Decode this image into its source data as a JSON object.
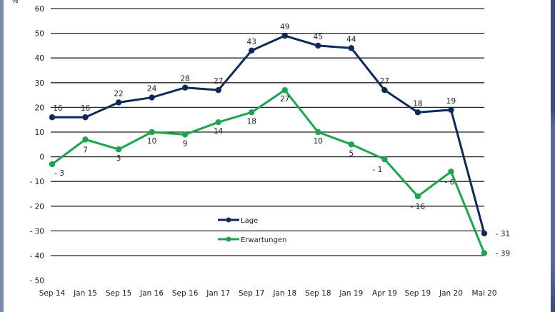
{
  "chart_data": {
    "type": "line",
    "title": "",
    "ylabel": "%",
    "xlabel": "",
    "ylim": [
      -50,
      60
    ],
    "yticks": [
      60,
      50,
      40,
      30,
      20,
      10,
      0,
      -10,
      -20,
      -30,
      -40,
      -50
    ],
    "ytick_labels": [
      "60",
      "50",
      "40",
      "30",
      "20",
      "10",
      "0",
      "- 10",
      "- 20",
      "- 30",
      "- 40",
      "- 50"
    ],
    "gridlines": [
      60,
      50,
      40,
      30,
      20,
      10,
      0,
      -10,
      -20,
      -30,
      -40
    ],
    "grid": true,
    "categories": [
      "Sep 14",
      "Jan 15",
      "Sep 15",
      "Jan 16",
      "Sep 16",
      "Jan 17",
      "Sep 17",
      "Jan 18",
      "Sep 18",
      "Jan 19",
      "Apr 19",
      "Sep 19",
      "Jan 20",
      "Mai 20"
    ],
    "legend_position": "lower-center",
    "series": [
      {
        "name": "Lage",
        "color": "#0e2a5c",
        "values": [
          16,
          16,
          22,
          24,
          28,
          27,
          43,
          49,
          45,
          44,
          27,
          18,
          19,
          -31
        ],
        "labels": [
          "16",
          "16",
          "22",
          "24",
          "28",
          "27",
          "43",
          "49",
          "45",
          "44",
          "27",
          "18",
          "19",
          "- 31"
        ]
      },
      {
        "name": "Erwartungen",
        "color": "#1aa64a",
        "values": [
          -3,
          7,
          3,
          10,
          9,
          14,
          18,
          27,
          10,
          5,
          -1,
          -16,
          -6,
          -39
        ],
        "labels": [
          "- 3",
          "7",
          "3",
          "10",
          "9",
          "14",
          "18",
          "27",
          "10",
          "5",
          "- 1",
          "- 16",
          "- 6",
          "- 39"
        ]
      }
    ]
  }
}
